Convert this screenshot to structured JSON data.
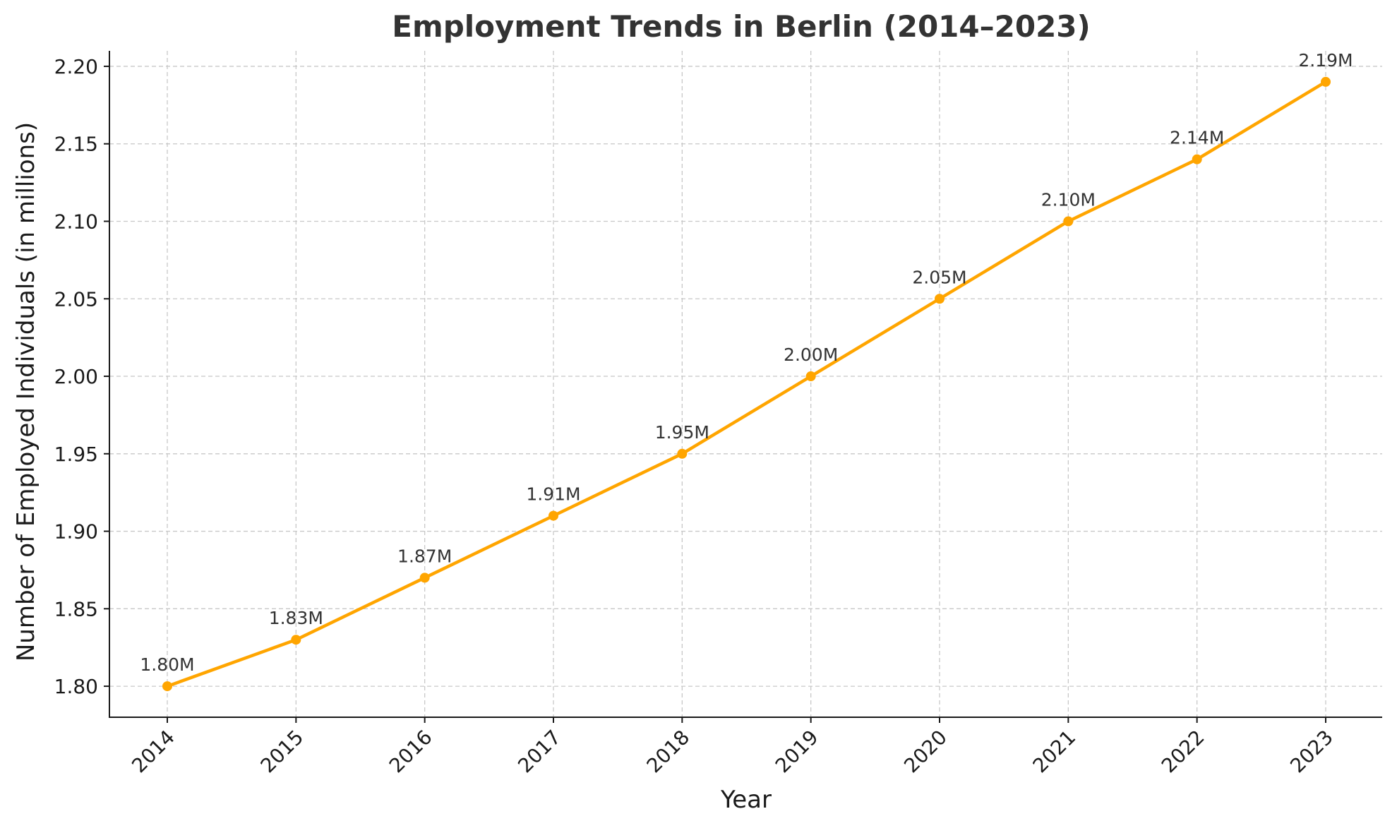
{
  "chart_data": {
    "type": "line",
    "title": "Employment Trends in Berlin (2014–2023)",
    "xlabel": "Year",
    "ylabel": "Number of Employed Individuals (in millions)",
    "categories": [
      "2014",
      "2015",
      "2016",
      "2017",
      "2018",
      "2019",
      "2020",
      "2021",
      "2022",
      "2023"
    ],
    "series": [
      {
        "values": [
          1.8,
          1.83,
          1.87,
          1.91,
          1.95,
          2.0,
          2.05,
          2.1,
          2.14,
          2.19
        ],
        "data_labels": [
          "1.80M",
          "1.83M",
          "1.87M",
          "1.91M",
          "1.95M",
          "2.00M",
          "2.05M",
          "2.10M",
          "2.14M",
          "2.19M"
        ],
        "color": "#FFA500"
      }
    ],
    "ylim": [
      1.78,
      2.21
    ],
    "yticks": [
      1.8,
      1.85,
      1.9,
      1.95,
      2.0,
      2.05,
      2.1,
      2.15,
      2.2
    ],
    "ytick_labels": [
      "1.80",
      "1.85",
      "1.90",
      "1.95",
      "2.00",
      "2.05",
      "2.10",
      "2.15",
      "2.20"
    ],
    "grid": true,
    "legend": "none"
  }
}
